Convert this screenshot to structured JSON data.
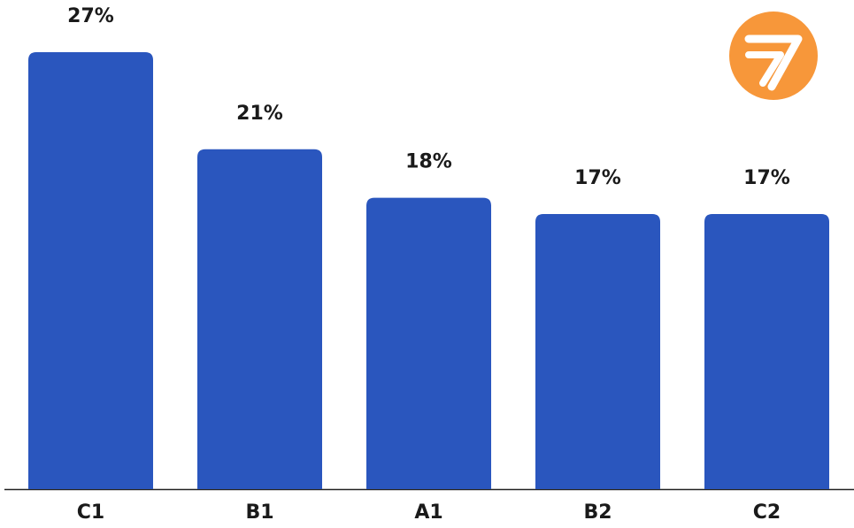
{
  "chart_data": {
    "type": "bar",
    "categories": [
      "C1",
      "B1",
      "A1",
      "B2",
      "C2"
    ],
    "values": [
      27,
      21,
      18,
      17,
      17
    ],
    "value_labels": [
      "27%",
      "21%",
      "18%",
      "17%",
      "17%"
    ],
    "color": "#2a56be"
  }
}
